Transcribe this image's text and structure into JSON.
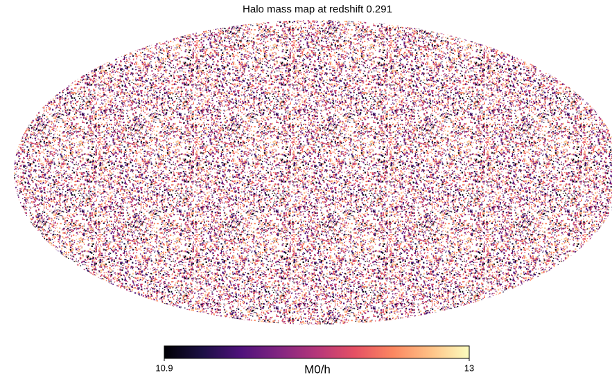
{
  "chart_data": {
    "type": "mollweide-map",
    "title": "Halo mass map at redshift 0.291",
    "colormap": "magma",
    "colorbar_label": "M0/h",
    "clim": [
      10.9,
      13
    ],
    "cticks": [
      10.9,
      13
    ]
  }
}
